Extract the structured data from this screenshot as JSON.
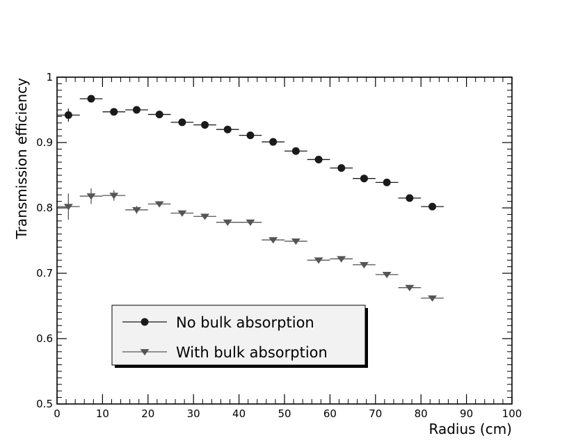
{
  "chart_data": {
    "type": "scatter",
    "xlabel": "Radius (cm)",
    "ylabel": "Transmission efficiency",
    "xlim": [
      0,
      100
    ],
    "ylim": [
      0.5,
      1.0
    ],
    "x_ticks": [
      0,
      10,
      20,
      30,
      40,
      50,
      60,
      70,
      80,
      90,
      100
    ],
    "x_tick_labels": [
      "0",
      "10",
      "20",
      "30",
      "40",
      "50",
      "60",
      "70",
      "80",
      "90",
      "100"
    ],
    "y_ticks": [
      0.5,
      0.6,
      0.7,
      0.8,
      0.9,
      1.0
    ],
    "y_tick_labels": [
      "0.5",
      "0.6",
      "0.7",
      "0.8",
      "0.9",
      "1"
    ],
    "x_bin_half_width": 2.5,
    "grid": false,
    "legend_position": "bottom-left",
    "series": [
      {
        "name": "No bulk absorption",
        "marker": "circle",
        "color": "#1a1a1a",
        "points": [
          {
            "x": 2.5,
            "y": 0.942,
            "err": 0.01
          },
          {
            "x": 7.5,
            "y": 0.967,
            "err": 0.0
          },
          {
            "x": 12.5,
            "y": 0.947,
            "err": 0.0
          },
          {
            "x": 17.5,
            "y": 0.95,
            "err": 0.0
          },
          {
            "x": 22.5,
            "y": 0.943,
            "err": 0.0
          },
          {
            "x": 27.5,
            "y": 0.931,
            "err": 0.0
          },
          {
            "x": 32.5,
            "y": 0.927,
            "err": 0.0
          },
          {
            "x": 37.5,
            "y": 0.92,
            "err": 0.0
          },
          {
            "x": 42.5,
            "y": 0.911,
            "err": 0.0
          },
          {
            "x": 47.5,
            "y": 0.901,
            "err": 0.0
          },
          {
            "x": 52.5,
            "y": 0.887,
            "err": 0.0
          },
          {
            "x": 57.5,
            "y": 0.874,
            "err": 0.0
          },
          {
            "x": 62.5,
            "y": 0.861,
            "err": 0.0
          },
          {
            "x": 67.5,
            "y": 0.845,
            "err": 0.0
          },
          {
            "x": 72.5,
            "y": 0.839,
            "err": 0.0
          },
          {
            "x": 77.5,
            "y": 0.815,
            "err": 0.0
          },
          {
            "x": 82.5,
            "y": 0.802,
            "err": 0.0
          }
        ]
      },
      {
        "name": "With bulk absorption",
        "marker": "triangle-down",
        "color": "#555555",
        "points": [
          {
            "x": 2.5,
            "y": 0.802,
            "err": 0.02
          },
          {
            "x": 7.5,
            "y": 0.818,
            "err": 0.012
          },
          {
            "x": 12.5,
            "y": 0.819,
            "err": 0.008
          },
          {
            "x": 17.5,
            "y": 0.797,
            "err": 0.006
          },
          {
            "x": 22.5,
            "y": 0.806,
            "err": 0.004
          },
          {
            "x": 27.5,
            "y": 0.792,
            "err": 0.0
          },
          {
            "x": 32.5,
            "y": 0.787,
            "err": 0.0
          },
          {
            "x": 37.5,
            "y": 0.778,
            "err": 0.0
          },
          {
            "x": 42.5,
            "y": 0.778,
            "err": 0.0
          },
          {
            "x": 47.5,
            "y": 0.751,
            "err": 0.0
          },
          {
            "x": 52.5,
            "y": 0.749,
            "err": 0.0
          },
          {
            "x": 57.5,
            "y": 0.72,
            "err": 0.0
          },
          {
            "x": 62.5,
            "y": 0.722,
            "err": 0.0
          },
          {
            "x": 67.5,
            "y": 0.713,
            "err": 0.0
          },
          {
            "x": 72.5,
            "y": 0.698,
            "err": 0.0
          },
          {
            "x": 77.5,
            "y": 0.678,
            "err": 0.0
          },
          {
            "x": 82.5,
            "y": 0.662,
            "err": 0.0
          }
        ]
      }
    ]
  }
}
